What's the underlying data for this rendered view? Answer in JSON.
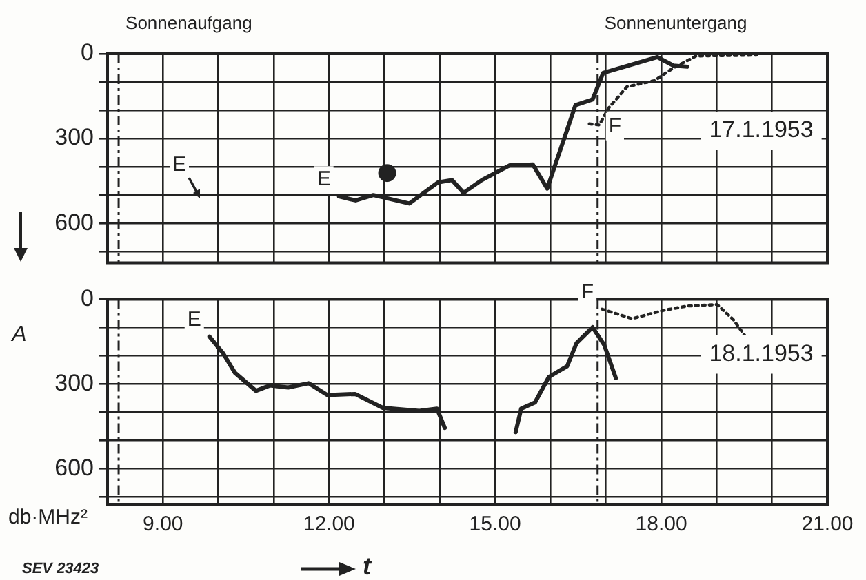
{
  "chart_data": [
    {
      "type": "line",
      "annotations": [
        "17.1.1953",
        "E"
      ],
      "xlim": [
        8,
        21
      ],
      "xticks": [
        {
          "value": 9,
          "label": null
        },
        {
          "value": 10,
          "label": null
        },
        {
          "value": 11,
          "label": null
        },
        {
          "value": 12,
          "label": null
        },
        {
          "value": 13,
          "label": null
        },
        {
          "value": 14,
          "label": null
        },
        {
          "value": 15,
          "label": null
        },
        {
          "value": 16,
          "label": null
        },
        {
          "value": 17,
          "label": null
        },
        {
          "value": 18,
          "label": null
        },
        {
          "value": 19,
          "label": null
        },
        {
          "value": 20,
          "label": null
        },
        {
          "value": 21,
          "label": null
        }
      ],
      "ylim": [
        740,
        0
      ],
      "yticks": [
        0,
        {
          "value": 100,
          "label": null
        },
        {
          "value": 200,
          "label": null
        },
        300,
        {
          "value": 400,
          "label": null
        },
        {
          "value": 500,
          "label": null
        },
        600,
        {
          "value": 700,
          "label": null
        }
      ],
      "tick_labels": "y",
      "grid": true,
      "legend": false,
      "ref_lines": [
        {
          "axis": "x",
          "value": 8.2,
          "label": "Sonnenaufgang"
        },
        {
          "axis": "x",
          "value": 16.85,
          "label": "Sonnenuntergang"
        }
      ],
      "series": [
        {
          "name": "E",
          "color": "#222222",
          "line_style": "solid",
          "marker": "none",
          "x": [
            12.18,
            12.48,
            12.8,
            13.45,
            13.97,
            14.22,
            14.43,
            14.76,
            15.26,
            15.68,
            15.94,
            16.45,
            16.76,
            16.95,
            17.93,
            18.22,
            18.47
          ],
          "values": [
            505,
            519,
            500,
            530,
            455,
            447,
            492,
            447,
            395,
            392,
            477,
            182,
            162,
            68,
            12,
            42,
            46
          ]
        },
        {
          "name": "F",
          "color": "#222222",
          "line_style": "dotted",
          "marker": "none",
          "x": [
            16.7,
            16.88,
            17.05,
            17.38,
            17.88,
            18.22,
            18.63,
            19.72
          ],
          "values": [
            248,
            252,
            192,
            117,
            95,
            50,
            8,
            5
          ]
        },
        {
          "type": "scatter",
          "color": "#222222",
          "marker": "circle",
          "x": [
            13.05
          ],
          "values": [
            422
          ]
        }
      ]
    },
    {
      "type": "line",
      "xlabel": "t",
      "ylabel": "A",
      "annotations": [
        "18.1.1953",
        "db·MHz²",
        "SEV 23423"
      ],
      "xlim": [
        8,
        21
      ],
      "xticks": [
        {
          "value": 9,
          "label": "9.00"
        },
        {
          "value": 10,
          "label": null
        },
        {
          "value": 11,
          "label": null
        },
        {
          "value": 12,
          "label": "12.00"
        },
        {
          "value": 13,
          "label": null
        },
        {
          "value": 14,
          "label": null
        },
        {
          "value": 15,
          "label": "15.00"
        },
        {
          "value": 16,
          "label": null
        },
        {
          "value": 17,
          "label": null
        },
        {
          "value": 18,
          "label": "18.00"
        },
        {
          "value": 19,
          "label": null
        },
        {
          "value": 20,
          "label": null
        },
        {
          "value": 21,
          "label": "21.00"
        }
      ],
      "ylim": [
        725,
        0
      ],
      "yticks": [
        0,
        {
          "value": 100,
          "label": null
        },
        {
          "value": 200,
          "label": null
        },
        300,
        {
          "value": 400,
          "label": null
        },
        {
          "value": 500,
          "label": null
        },
        600,
        {
          "value": 700,
          "label": null
        }
      ],
      "grid": true,
      "legend": false,
      "ref_lines": [
        {
          "axis": "x",
          "value": 8.2
        },
        {
          "axis": "x",
          "value": 16.85
        }
      ],
      "series": [
        {
          "name": "E",
          "color": "#222222",
          "line_style": "solid",
          "marker": "none",
          "x": [
            9.84,
            10.09,
            10.3,
            10.68,
            10.93,
            11.26,
            11.63,
            11.97,
            12.47,
            12.97,
            13.63,
            13.95,
            14.09,
            14.7,
            15.37,
            15.47,
            15.72,
            15.97,
            16.3,
            16.47,
            16.76,
            16.97,
            17.18
          ],
          "values": [
            132,
            192,
            260,
            324,
            305,
            312,
            297,
            339,
            335,
            384,
            395,
            387,
            455,
            null,
            470,
            387,
            365,
            275,
            237,
            155,
            99,
            162,
            279
          ]
        },
        {
          "name": "F",
          "color": "#222222",
          "line_style": "dotted",
          "marker": "none",
          "x": [
            16.93,
            17.47,
            18.05,
            18.47,
            19.01,
            19.3,
            19.51
          ],
          "values": [
            35,
            69,
            39,
            24,
            19,
            72,
            129
          ]
        }
      ]
    }
  ]
}
